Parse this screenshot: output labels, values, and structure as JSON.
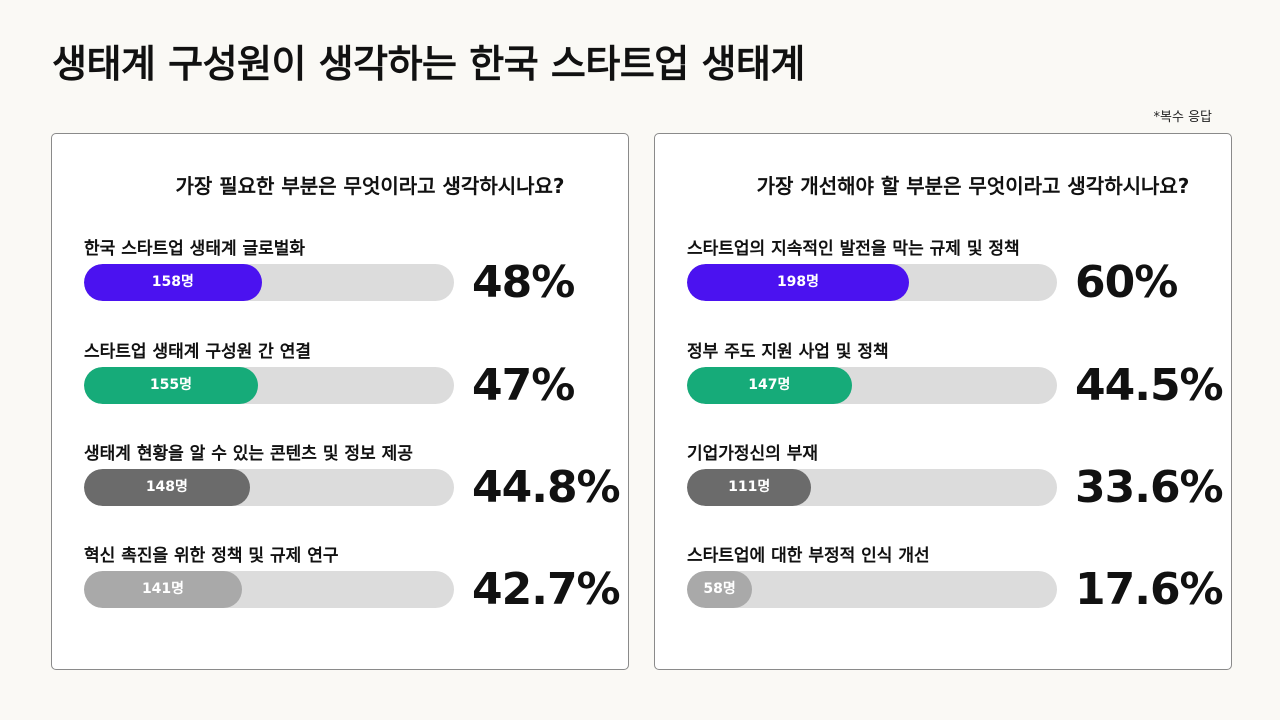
{
  "title": "생태계 구성원이 생각하는 한국 스타트업 생태계",
  "note": "*복수 응답",
  "chart_data": [
    {
      "type": "bar",
      "title": "가장 필요한 부분은 무엇이라고 생각하시나요?",
      "categories": [
        "한국 스타트업 생태계 글로벌화",
        "스타트업 생태계 구성원 간 연결",
        "생태계 현황을 알 수 있는 콘텐츠 및 정보 제공",
        "혁신 촉진을 위한 정책 및 규제 연구"
      ],
      "counts": [
        "158명",
        "155명",
        "148명",
        "141명"
      ],
      "percent_labels": [
        "48%",
        "47%",
        "44.8%",
        "42.7%"
      ],
      "values": [
        48,
        47,
        44.8,
        42.7
      ],
      "ylim": [
        0,
        100
      ],
      "colors": [
        "#4b12f0",
        "#16ab79",
        "#6b6b6b",
        "#a9a9a9"
      ]
    },
    {
      "type": "bar",
      "title": "가장 개선해야 할 부분은 무엇이라고 생각하시나요?",
      "categories": [
        "스타트업의 지속적인 발전을 막는 규제 및 정책",
        "정부 주도 지원 사업 및 정책",
        "기업가정신의 부재",
        "스타트업에 대한 부정적 인식 개선"
      ],
      "counts": [
        "198명",
        "147명",
        "111명",
        "58명"
      ],
      "percent_labels": [
        "60%",
        "44.5%",
        "33.6%",
        "17.6%"
      ],
      "values": [
        60,
        44.5,
        33.6,
        17.6
      ],
      "ylim": [
        0,
        100
      ],
      "colors": [
        "#4b12f0",
        "#16ab79",
        "#6b6b6b",
        "#a9a9a9"
      ]
    }
  ]
}
